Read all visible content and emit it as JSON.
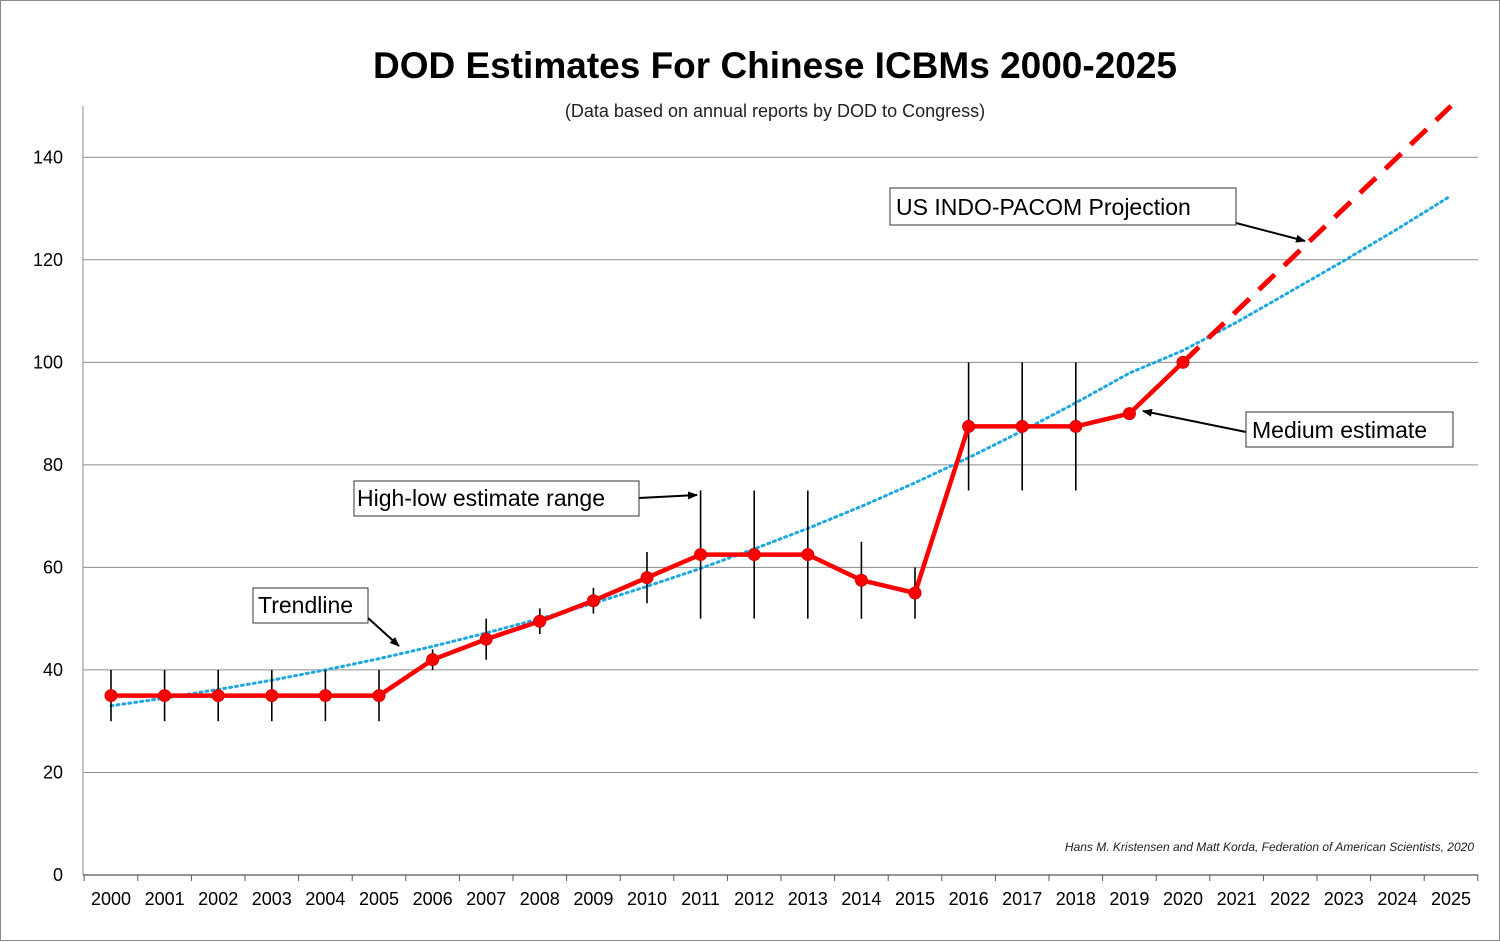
{
  "chart_data": {
    "type": "line",
    "title": "DOD Estimates For Chinese ICBMs 2000-2025",
    "subtitle": "(Data based on annual reports by DOD to Congress)",
    "credit": "Hans M. Kristensen and Matt Korda, Federation of American Scientists, 2020",
    "categories": [
      "2000",
      "2001",
      "2002",
      "2003",
      "2004",
      "2005",
      "2006",
      "2007",
      "2008",
      "2009",
      "2010",
      "2011",
      "2012",
      "2013",
      "2014",
      "2015",
      "2016",
      "2017",
      "2018",
      "2019",
      "2020",
      "2021",
      "2022",
      "2023",
      "2024",
      "2025"
    ],
    "ylim": [
      0,
      150
    ],
    "yticks": [
      0,
      20,
      40,
      60,
      80,
      100,
      120,
      140
    ],
    "grid": true,
    "series": [
      {
        "name": "Medium estimate",
        "color": "#ff0000",
        "x": [
          "2000",
          "2001",
          "2002",
          "2003",
          "2004",
          "2005",
          "2006",
          "2007",
          "2008",
          "2009",
          "2010",
          "2011",
          "2012",
          "2013",
          "2014",
          "2015",
          "2016",
          "2017",
          "2018",
          "2019",
          "2020"
        ],
        "values": [
          35,
          35,
          35,
          35,
          35,
          35,
          42,
          46,
          49.5,
          53.5,
          58,
          62.5,
          62.5,
          62.5,
          57.5,
          55,
          87.5,
          87.5,
          87.5,
          90,
          100
        ]
      },
      {
        "name": "US INDO-PACOM Projection",
        "color": "#ff0000",
        "style": "dashed",
        "x": [
          "2020",
          "2025"
        ],
        "values": [
          100,
          150
        ]
      },
      {
        "name": "Trendline",
        "color": "#1ea7e1",
        "style": "dotted",
        "x": [
          "2000",
          "2001",
          "2002",
          "2003",
          "2004",
          "2005",
          "2006",
          "2007",
          "2008",
          "2009",
          "2010",
          "2011",
          "2012",
          "2013",
          "2014",
          "2015",
          "2016",
          "2017",
          "2018",
          "2019",
          "2020",
          "2021",
          "2022",
          "2023",
          "2024",
          "2025"
        ],
        "values": [
          33,
          34.5,
          36.2,
          38.0,
          40.0,
          42.2,
          44.6,
          47.2,
          50.0,
          53.0,
          56.3,
          59.8,
          63.6,
          67.6,
          71.9,
          76.5,
          81.4,
          86.6,
          92.1,
          97.9,
          102.3,
          107.8,
          113.8,
          119.8,
          126.0,
          132.5
        ]
      }
    ],
    "ranges": {
      "name": "High-low estimate range",
      "x": [
        "2000",
        "2001",
        "2002",
        "2003",
        "2004",
        "2005",
        "2006",
        "2007",
        "2008",
        "2009",
        "2010",
        "2011",
        "2012",
        "2013",
        "2014",
        "2015",
        "2016",
        "2017",
        "2018"
      ],
      "low": [
        30,
        30,
        30,
        30,
        30,
        30,
        40,
        42,
        47,
        51,
        53,
        50,
        50,
        50,
        50,
        50,
        75,
        75,
        75
      ],
      "high": [
        40,
        40,
        40,
        40,
        40,
        40,
        44,
        50,
        52,
        56,
        63,
        75,
        75,
        75,
        65,
        60,
        100,
        100,
        100
      ]
    },
    "annotations": [
      {
        "id": "projection",
        "text": "US INDO-PACOM Projection"
      },
      {
        "id": "medium",
        "text": "Medium estimate"
      },
      {
        "id": "range",
        "text": "High-low estimate range"
      },
      {
        "id": "trend",
        "text": "Trendline"
      }
    ]
  }
}
